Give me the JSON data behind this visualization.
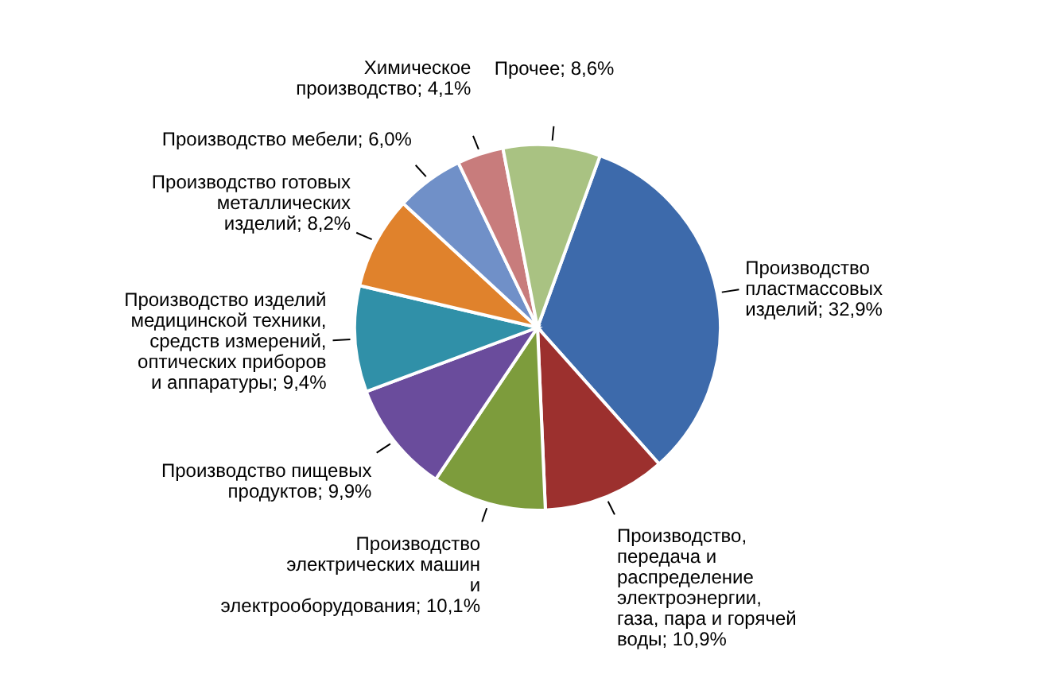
{
  "chart_data": {
    "type": "pie",
    "categories": [
      "Производство пластмассовых изделий",
      "Производство, передача и распределение электроэнергии, газа, пара и горячей воды",
      "Производство электрических машин и электрооборудования",
      "Производство пищевых продуктов",
      "Производство изделий медицинской техники, средств измерений, оптических приборов и аппаратуры",
      "Производство готовых металлических изделий",
      "Производство мебели",
      "Химическое производство",
      "Прочее"
    ],
    "values": [
      32.9,
      10.9,
      10.1,
      9.9,
      9.4,
      8.2,
      6.0,
      4.1,
      8.6
    ],
    "value_labels": [
      "32,9%",
      "10,9%",
      "10,1%",
      "9,9%",
      "9,4%",
      "8,2%",
      "6,0%",
      "4,1%",
      "8,6%"
    ],
    "colors": [
      "#3d6aab",
      "#9c302e",
      "#7d9c3c",
      "#6a4c9c",
      "#3090a8",
      "#e0822c",
      "#7090c8",
      "#c87c7c",
      "#a9c282"
    ]
  }
}
